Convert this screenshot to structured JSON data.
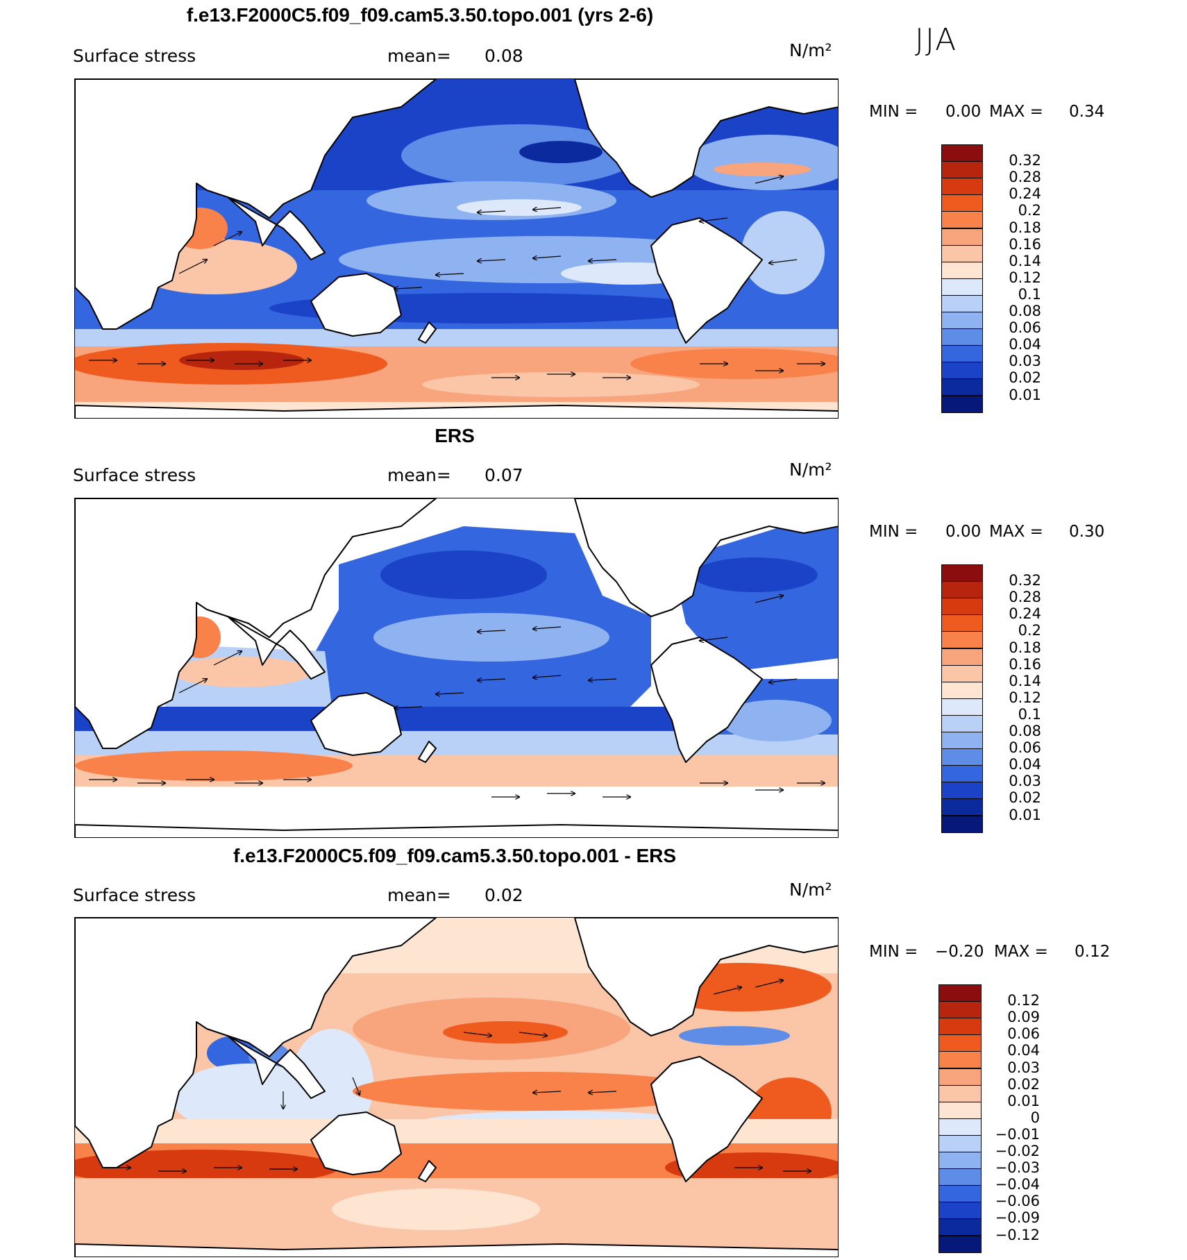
{
  "season": "JJA",
  "panels": [
    {
      "title": "f.e13.F2000C5.f09_f09.cam5.3.50.topo.001 (yrs 2-6)",
      "variable": "Surface stress",
      "mean_label": "mean=",
      "mean_value": "0.08",
      "units": "N/m²",
      "min_label": "MIN =",
      "min_value": "0.00",
      "max_label": "MAX =",
      "max_value": "0.34",
      "colorbar": {
        "labels": [
          "0.32",
          "0.28",
          "0.24",
          "0.2",
          "0.18",
          "0.16",
          "0.14",
          "0.12",
          "0.1",
          "0.08",
          "0.06",
          "0.04",
          "0.03",
          "0.02",
          "0.01"
        ],
        "colors": [
          "#8c0d0d",
          "#b8250f",
          "#d83a10",
          "#ef5a1e",
          "#f9814a",
          "#f8a47c",
          "#fbc6a8",
          "#fde5d2",
          "#dde9fb",
          "#b9d1f6",
          "#8fb3f0",
          "#5d8de6",
          "#3466e0",
          "#1a43c8",
          "#0a2a9e",
          "#06197a"
        ]
      }
    },
    {
      "title": "ERS",
      "variable": "Surface stress",
      "mean_label": "mean=",
      "mean_value": "0.07",
      "units": "N/m²",
      "min_label": "MIN =",
      "min_value": "0.00",
      "max_label": "MAX =",
      "max_value": "0.30",
      "colorbar": {
        "labels": [
          "0.32",
          "0.28",
          "0.24",
          "0.2",
          "0.18",
          "0.16",
          "0.14",
          "0.12",
          "0.1",
          "0.08",
          "0.06",
          "0.04",
          "0.03",
          "0.02",
          "0.01"
        ],
        "colors": [
          "#8c0d0d",
          "#b8250f",
          "#d83a10",
          "#ef5a1e",
          "#f9814a",
          "#f8a47c",
          "#fbc6a8",
          "#fde5d2",
          "#dde9fb",
          "#b9d1f6",
          "#8fb3f0",
          "#5d8de6",
          "#3466e0",
          "#1a43c8",
          "#0a2a9e",
          "#06197a"
        ]
      }
    },
    {
      "title": "f.e13.F2000C5.f09_f09.cam5.3.50.topo.001 - ERS",
      "variable": "Surface stress",
      "mean_label": "mean=",
      "mean_value": "0.02",
      "units": "N/m²",
      "min_label": "MIN =",
      "min_value": "−0.20",
      "max_label": "MAX =",
      "max_value": "0.12",
      "colorbar": {
        "labels": [
          "0.12",
          "0.09",
          "0.06",
          "0.04",
          "0.03",
          "0.02",
          "0.01",
          "0",
          "−0.01",
          "−0.02",
          "−0.03",
          "−0.04",
          "−0.06",
          "−0.09",
          "−0.12"
        ],
        "colors": [
          "#8c0d0d",
          "#b8250f",
          "#d83a10",
          "#ef5a1e",
          "#f9814a",
          "#f8a47c",
          "#fbc6a8",
          "#fde5d2",
          "#dde9fb",
          "#b9d1f6",
          "#8fb3f0",
          "#5d8de6",
          "#3466e0",
          "#1a43c8",
          "#0a2a9e",
          "#06197a"
        ]
      }
    }
  ]
}
